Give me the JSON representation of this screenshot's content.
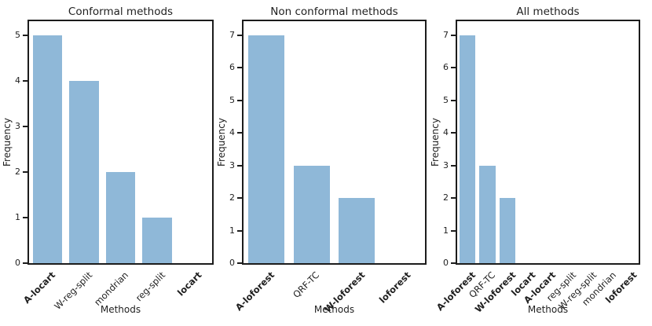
{
  "figure": {
    "background_color": "#ffffff",
    "bar_color": "#8FB8D8",
    "spine_color": "#1c1c1c",
    "text_color": "#1f1f1f"
  },
  "chart_data": [
    {
      "type": "bar",
      "title": "Conformal methods",
      "xlabel": "Methods",
      "ylabel": "Frequency",
      "categories": [
        "A-locart",
        "W-reg-split",
        "mondrian",
        "reg-split",
        "locart"
      ],
      "bold_categories": [
        true,
        false,
        false,
        false,
        true
      ],
      "values": [
        5,
        4,
        2,
        1,
        0
      ],
      "yticks": [
        0,
        1,
        2,
        3,
        4,
        5
      ],
      "ylim": [
        0,
        5.3
      ],
      "grid": false,
      "legend": null
    },
    {
      "type": "bar",
      "title": "Non conformal methods",
      "xlabel": "Methods",
      "ylabel": "Frequency",
      "categories": [
        "A-loforest",
        "QRF-TC",
        "W-loforest",
        "loforest"
      ],
      "bold_categories": [
        true,
        false,
        true,
        true
      ],
      "values": [
        7,
        3,
        2,
        0
      ],
      "yticks": [
        0,
        1,
        2,
        3,
        4,
        5,
        6,
        7
      ],
      "ylim": [
        0,
        7.45
      ],
      "grid": false,
      "legend": null
    },
    {
      "type": "bar",
      "title": "All methods",
      "xlabel": "Methods",
      "ylabel": "Frequency",
      "categories": [
        "A-loforest",
        "QRF-TC",
        "W-loforest",
        "locart",
        "A-locart",
        "reg-split",
        "W-reg-split",
        "mondrian",
        "loforest"
      ],
      "bold_categories": [
        true,
        false,
        true,
        true,
        true,
        false,
        false,
        false,
        true
      ],
      "values": [
        7,
        3,
        2,
        0,
        0,
        0,
        0,
        0,
        0
      ],
      "yticks": [
        0,
        1,
        2,
        3,
        4,
        5,
        6,
        7
      ],
      "ylim": [
        0,
        7.45
      ],
      "grid": false,
      "legend": null
    }
  ]
}
